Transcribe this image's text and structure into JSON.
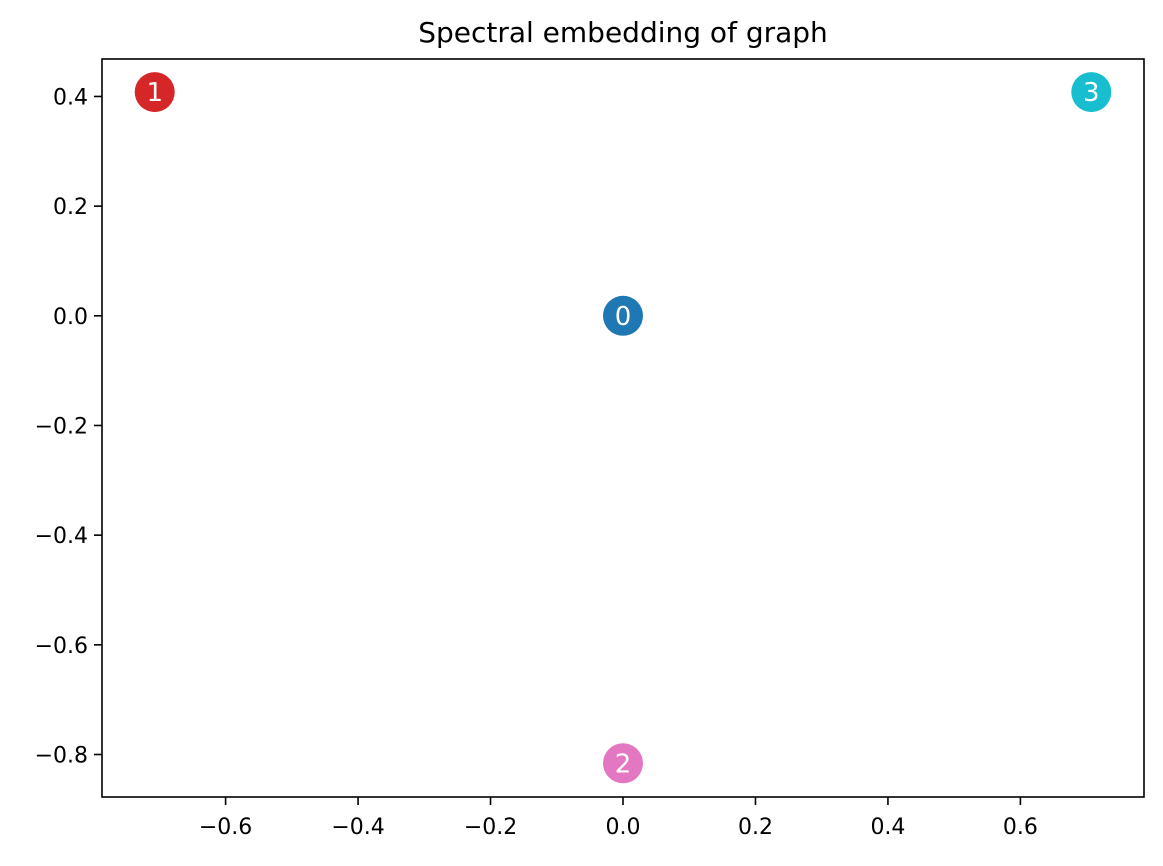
{
  "chart_data": {
    "type": "scatter",
    "title": "Spectral embedding of graph",
    "xlabel": "",
    "ylabel": "",
    "xlim": [
      -0.7866,
      0.7866
    ],
    "ylim": [
      -0.8775,
      0.4683
    ],
    "grid": false,
    "legend": "none",
    "xticks": [
      {
        "value": -0.6,
        "label": "−0.6"
      },
      {
        "value": -0.4,
        "label": "−0.4"
      },
      {
        "value": -0.2,
        "label": "−0.2"
      },
      {
        "value": 0.0,
        "label": "0.0"
      },
      {
        "value": 0.2,
        "label": "0.2"
      },
      {
        "value": 0.4,
        "label": "0.4"
      },
      {
        "value": 0.6,
        "label": "0.6"
      }
    ],
    "yticks": [
      {
        "value": 0.4,
        "label": "0.4"
      },
      {
        "value": 0.2,
        "label": "0.2"
      },
      {
        "value": 0.0,
        "label": "0.0"
      },
      {
        "value": -0.2,
        "label": "−0.2"
      },
      {
        "value": -0.4,
        "label": "−0.4"
      },
      {
        "value": -0.6,
        "label": "−0.6"
      },
      {
        "value": -0.8,
        "label": "−0.8"
      }
    ],
    "points": [
      {
        "label": "0",
        "x": 0.0,
        "y": 0.0,
        "color": "#1f77b4"
      },
      {
        "label": "1",
        "x": -0.707,
        "y": 0.408,
        "color": "#d62728"
      },
      {
        "label": "2",
        "x": 0.0,
        "y": -0.816,
        "color": "#e377c2"
      },
      {
        "label": "3",
        "x": 0.707,
        "y": 0.408,
        "color": "#17becf"
      }
    ]
  }
}
